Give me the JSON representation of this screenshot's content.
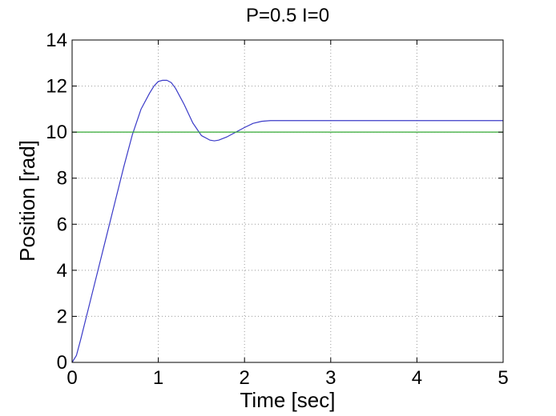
{
  "chart_data": {
    "type": "line",
    "title": "P=0.5 I=0",
    "xlabel": "Time [sec]",
    "ylabel": "Position [rad]",
    "xlim": [
      0,
      5
    ],
    "ylim": [
      0,
      14
    ],
    "xticks": [
      0,
      1,
      2,
      3,
      4,
      5
    ],
    "yticks": [
      0,
      2,
      4,
      6,
      8,
      10,
      12,
      14
    ],
    "xtick_labels": [
      "0",
      "1",
      "2",
      "3",
      "4",
      "5"
    ],
    "ytick_labels": [
      "0",
      "2",
      "4",
      "6",
      "8",
      "10",
      "12",
      "14"
    ],
    "grid": true,
    "series": [
      {
        "color": "#3b3bc8",
        "x": [
          0,
          0.05,
          0.1,
          0.2,
          0.3,
          0.4,
          0.5,
          0.6,
          0.7,
          0.8,
          0.9,
          0.95,
          1.0,
          1.05,
          1.1,
          1.15,
          1.2,
          1.3,
          1.4,
          1.5,
          1.6,
          1.65,
          1.7,
          1.8,
          1.9,
          2.0,
          2.1,
          2.2,
          2.3,
          2.5,
          3.0,
          3.5,
          4.0,
          4.5,
          5.0
        ],
        "y": [
          0,
          0.3,
          1.0,
          2.5,
          4.0,
          5.5,
          7.0,
          8.5,
          9.9,
          11.0,
          11.7,
          12.0,
          12.2,
          12.25,
          12.25,
          12.15,
          11.9,
          11.2,
          10.4,
          9.85,
          9.65,
          9.62,
          9.65,
          9.8,
          10.0,
          10.2,
          10.38,
          10.47,
          10.5,
          10.5,
          10.5,
          10.5,
          10.5,
          10.5,
          10.5
        ]
      },
      {
        "color": "#33aa33",
        "x": [
          0,
          5
        ],
        "y": [
          10,
          10
        ]
      }
    ]
  }
}
